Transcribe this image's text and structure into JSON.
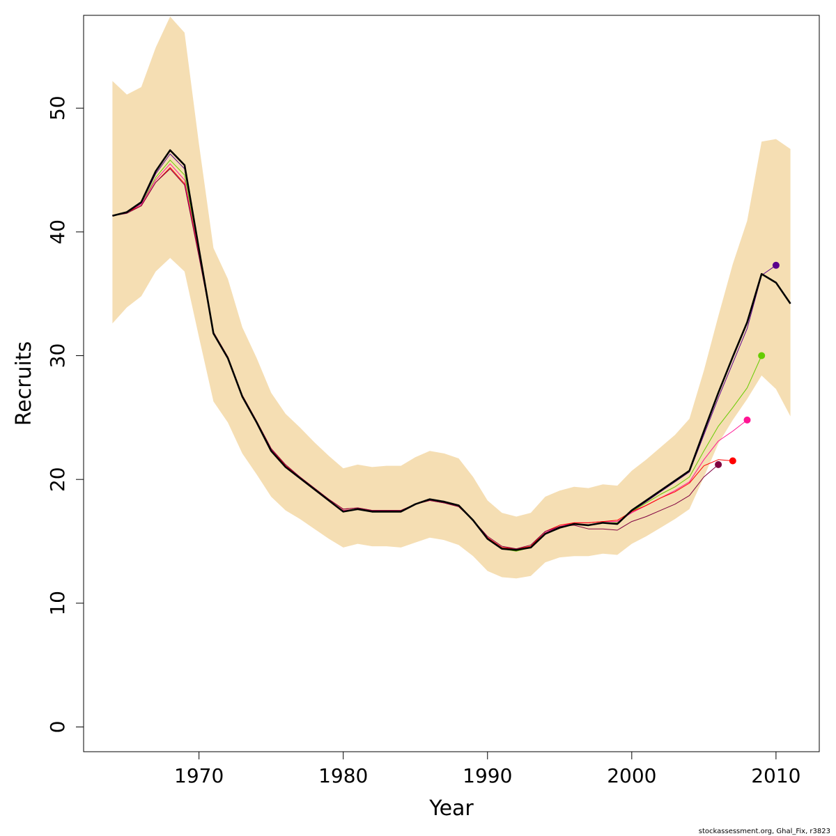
{
  "chart_data": {
    "type": "line",
    "xlabel": "Year",
    "ylabel": "Recruits",
    "xlim": [
      1962,
      2013
    ],
    "ylim": [
      -2,
      57.5
    ],
    "xticks": [
      1970,
      1980,
      1990,
      2000,
      2010
    ],
    "yticks": [
      0,
      10,
      20,
      30,
      40,
      50
    ],
    "xtick_labels": [
      "1970",
      "1980",
      "1990",
      "2000",
      "2010"
    ],
    "ytick_labels": [
      "0",
      "10",
      "20",
      "30",
      "40",
      "50"
    ],
    "footnote": "stockassessment.org, Ghal_Fix, r3823",
    "band": {
      "color": "#f5deb3",
      "x": [
        1964,
        1965,
        1966,
        1967,
        1968,
        1969,
        1970,
        1971,
        1972,
        1973,
        1974,
        1975,
        1976,
        1977,
        1978,
        1979,
        1980,
        1981,
        1982,
        1983,
        1984,
        1985,
        1986,
        1987,
        1988,
        1989,
        1990,
        1991,
        1992,
        1993,
        1994,
        1995,
        1996,
        1997,
        1998,
        1999,
        2000,
        2001,
        2002,
        2003,
        2004,
        2005,
        2006,
        2007,
        2008,
        2009,
        2010,
        2011
      ],
      "upper": [
        52.2,
        51.1,
        51.7,
        54.9,
        57.4,
        56.1,
        47.1,
        38.7,
        36.2,
        32.3,
        29.8,
        27.0,
        25.3,
        24.2,
        23.0,
        21.9,
        20.9,
        21.2,
        21.0,
        21.1,
        21.1,
        21.8,
        22.3,
        22.1,
        21.7,
        20.2,
        18.3,
        17.3,
        17.0,
        17.3,
        18.6,
        19.1,
        19.4,
        19.3,
        19.6,
        19.5,
        20.7,
        21.6,
        22.6,
        23.6,
        24.9,
        28.8,
        33.2,
        37.4,
        40.9,
        47.3,
        47.5,
        46.7
      ],
      "lower": [
        32.6,
        33.9,
        34.8,
        36.8,
        37.9,
        36.8,
        31.5,
        26.3,
        24.6,
        22.1,
        20.4,
        18.6,
        17.5,
        16.8,
        16.0,
        15.2,
        14.5,
        14.8,
        14.6,
        14.6,
        14.5,
        14.9,
        15.3,
        15.1,
        14.7,
        13.8,
        12.6,
        12.1,
        12.0,
        12.2,
        13.3,
        13.7,
        13.8,
        13.8,
        14.0,
        13.9,
        14.8,
        15.4,
        16.1,
        16.8,
        17.6,
        20.2,
        22.9,
        24.8,
        26.5,
        28.4,
        27.3,
        25.1
      ]
    },
    "series": [
      {
        "color": "#000000",
        "width": 2.6,
        "x": [
          1964,
          1965,
          1966,
          1967,
          1968,
          1969,
          1970,
          1971,
          1972,
          1973,
          1974,
          1975,
          1976,
          1977,
          1978,
          1979,
          1980,
          1981,
          1982,
          1983,
          1984,
          1985,
          1986,
          1987,
          1988,
          1989,
          1990,
          1991,
          1992,
          1993,
          1994,
          1995,
          1996,
          1997,
          1998,
          1999,
          2000,
          2001,
          2002,
          2003,
          2004,
          2005,
          2006,
          2007,
          2008,
          2009,
          2010,
          2011
        ],
        "y": [
          41.3,
          41.6,
          42.4,
          44.9,
          46.6,
          45.4,
          38.6,
          31.8,
          29.8,
          26.7,
          24.6,
          22.3,
          21.0,
          20.1,
          19.2,
          18.3,
          17.4,
          17.6,
          17.4,
          17.4,
          17.4,
          18.0,
          18.4,
          18.2,
          17.9,
          16.7,
          15.2,
          14.4,
          14.3,
          14.5,
          15.6,
          16.1,
          16.4,
          16.3,
          16.5,
          16.4,
          17.5,
          18.3,
          19.1,
          19.9,
          20.7,
          23.9,
          27.0,
          29.9,
          32.7,
          36.6,
          35.9,
          34.2
        ]
      },
      {
        "color": "#5a008c",
        "width": 1.0,
        "x": [
          1964,
          1965,
          1966,
          1967,
          1968,
          1969,
          1970,
          1971,
          1972,
          1973,
          1974,
          1975,
          1976,
          1977,
          1978,
          1979,
          1980,
          1981,
          1982,
          1983,
          1984,
          1985,
          1986,
          1987,
          1988,
          1989,
          1990,
          1991,
          1992,
          1993,
          1994,
          1995,
          1996,
          1997,
          1998,
          1999,
          2000,
          2001,
          2002,
          2003,
          2004,
          2005,
          2006,
          2007,
          2008,
          2009,
          2010
        ],
        "y": [
          41.3,
          41.6,
          42.3,
          44.7,
          46.3,
          45.1,
          38.5,
          31.8,
          29.8,
          26.7,
          24.6,
          22.3,
          21.0,
          20.1,
          19.2,
          18.3,
          17.4,
          17.6,
          17.4,
          17.4,
          17.4,
          18.0,
          18.4,
          18.2,
          17.9,
          16.7,
          15.2,
          14.4,
          14.3,
          14.5,
          15.6,
          16.1,
          16.4,
          16.3,
          16.5,
          16.4,
          17.4,
          18.2,
          19.0,
          19.8,
          20.6,
          23.6,
          26.6,
          29.4,
          32.2,
          36.5,
          37.3
        ]
      },
      {
        "color": "#66cc00",
        "width": 1.0,
        "x": [
          1964,
          1965,
          1966,
          1967,
          1968,
          1969,
          1970,
          1971,
          1972,
          1973,
          1974,
          1975,
          1976,
          1977,
          1978,
          1979,
          1980,
          1981,
          1982,
          1983,
          1984,
          1985,
          1986,
          1987,
          1988,
          1989,
          1990,
          1991,
          1992,
          1993,
          1994,
          1995,
          1996,
          1997,
          1998,
          1999,
          2000,
          2001,
          2002,
          2003,
          2004,
          2005,
          2006,
          2007,
          2008,
          2009
        ],
        "y": [
          41.3,
          41.6,
          42.2,
          44.4,
          45.8,
          44.6,
          38.3,
          31.8,
          29.8,
          26.7,
          24.6,
          22.4,
          21.0,
          20.1,
          19.2,
          18.3,
          17.5,
          17.6,
          17.4,
          17.4,
          17.4,
          18.0,
          18.3,
          18.1,
          17.8,
          16.7,
          15.2,
          14.4,
          14.2,
          14.5,
          15.6,
          16.1,
          16.4,
          16.3,
          16.5,
          16.5,
          17.4,
          18.1,
          18.8,
          19.4,
          20.2,
          22.3,
          24.3,
          25.8,
          27.4,
          30.0
        ]
      },
      {
        "color": "#ff1493",
        "width": 1.0,
        "x": [
          1964,
          1965,
          1966,
          1967,
          1968,
          1969,
          1970,
          1971,
          1972,
          1973,
          1974,
          1975,
          1976,
          1977,
          1978,
          1979,
          1980,
          1981,
          1982,
          1983,
          1984,
          1985,
          1986,
          1987,
          1988,
          1989,
          1990,
          1991,
          1992,
          1993,
          1994,
          1995,
          1996,
          1997,
          1998,
          1999,
          2000,
          2001,
          2002,
          2003,
          2004,
          2005,
          2006,
          2007,
          2008
        ],
        "y": [
          41.3,
          41.6,
          42.2,
          44.2,
          45.5,
          44.2,
          38.2,
          31.9,
          29.8,
          26.8,
          24.7,
          22.4,
          21.1,
          20.2,
          19.2,
          18.3,
          17.5,
          17.6,
          17.5,
          17.5,
          17.4,
          18.0,
          18.3,
          18.1,
          17.8,
          16.7,
          15.3,
          14.5,
          14.3,
          14.5,
          15.7,
          16.2,
          16.5,
          16.5,
          16.6,
          16.6,
          17.3,
          17.9,
          18.5,
          19.1,
          19.8,
          21.6,
          23.1,
          23.9,
          24.8
        ]
      },
      {
        "color": "#ff0000",
        "width": 1.0,
        "x": [
          1964,
          1965,
          1966,
          1967,
          1968,
          1969,
          1970,
          1971,
          1972,
          1973,
          1974,
          1975,
          1976,
          1977,
          1978,
          1979,
          1980,
          1981,
          1982,
          1983,
          1984,
          1985,
          1986,
          1987,
          1988,
          1989,
          1990,
          1991,
          1992,
          1993,
          1994,
          1995,
          1996,
          1997,
          1998,
          1999,
          2000,
          2001,
          2002,
          2003,
          2004,
          2005,
          2006,
          2007
        ],
        "y": [
          41.3,
          41.6,
          42.1,
          44.0,
          45.2,
          43.9,
          38.1,
          31.9,
          29.9,
          26.8,
          24.7,
          22.5,
          21.1,
          20.2,
          19.3,
          18.4,
          17.6,
          17.7,
          17.5,
          17.5,
          17.5,
          18.0,
          18.3,
          18.1,
          17.8,
          16.7,
          15.3,
          14.5,
          14.4,
          14.6,
          15.8,
          16.3,
          16.5,
          16.5,
          16.6,
          16.7,
          17.4,
          17.9,
          18.5,
          19.0,
          19.7,
          21.1,
          21.6,
          21.5
        ]
      },
      {
        "color": "#800040",
        "width": 1.0,
        "x": [
          1964,
          1965,
          1966,
          1967,
          1968,
          1969,
          1970,
          1971,
          1972,
          1973,
          1974,
          1975,
          1976,
          1977,
          1978,
          1979,
          1980,
          1981,
          1982,
          1983,
          1984,
          1985,
          1986,
          1987,
          1988,
          1989,
          1990,
          1991,
          1992,
          1993,
          1994,
          1995,
          1996,
          1997,
          1998,
          1999,
          2000,
          2001,
          2002,
          2003,
          2004,
          2005,
          2006
        ],
        "y": [
          41.3,
          41.5,
          42.1,
          44.0,
          45.1,
          43.8,
          38.0,
          31.9,
          29.9,
          26.8,
          24.7,
          22.5,
          21.2,
          20.2,
          19.3,
          18.4,
          17.6,
          17.7,
          17.5,
          17.5,
          17.5,
          18.0,
          18.3,
          18.1,
          17.8,
          16.7,
          15.4,
          14.6,
          14.4,
          14.7,
          15.8,
          16.2,
          16.3,
          16.0,
          16.0,
          15.9,
          16.6,
          17.0,
          17.5,
          18.0,
          18.7,
          20.2,
          21.2
        ]
      }
    ],
    "end_points": [
      {
        "x": 2010,
        "y": 37.3,
        "color": "#5a008c"
      },
      {
        "x": 2009,
        "y": 30.0,
        "color": "#66cc00"
      },
      {
        "x": 2008,
        "y": 24.8,
        "color": "#ff1493"
      },
      {
        "x": 2007,
        "y": 21.5,
        "color": "#ff0000"
      },
      {
        "x": 2006,
        "y": 21.2,
        "color": "#800040"
      }
    ]
  }
}
